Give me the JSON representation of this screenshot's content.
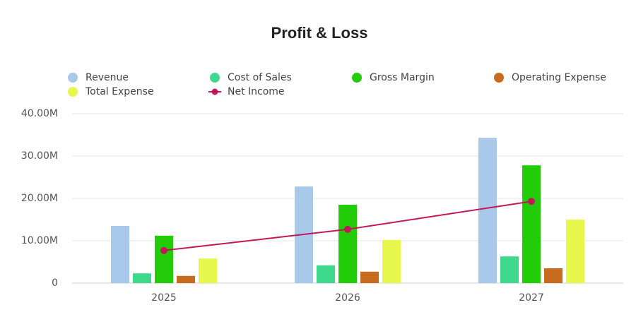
{
  "chart_data": {
    "type": "bar",
    "title": "Profit & Loss",
    "categories": [
      "2025",
      "2026",
      "2027"
    ],
    "series": [
      {
        "name": "Revenue",
        "color": "#a9c9ea",
        "values": [
          13500000,
          22800000,
          34300000
        ]
      },
      {
        "name": "Cost of Sales",
        "color": "#3ed98c",
        "values": [
          2300000,
          4200000,
          6300000
        ]
      },
      {
        "name": "Gross Margin",
        "color": "#22cc08",
        "values": [
          11200000,
          18500000,
          27800000
        ]
      },
      {
        "name": "Operating Expense",
        "color": "#c96b1e",
        "values": [
          1700000,
          2700000,
          3500000
        ]
      },
      {
        "name": "Total Expense",
        "color": "#e8f74c",
        "values": [
          5800000,
          10200000,
          15000000
        ]
      },
      {
        "name": "Net Income",
        "color": "#c2185b",
        "type": "line",
        "values": [
          7700000,
          12700000,
          19300000
        ]
      }
    ],
    "ylim": [
      0,
      40000000
    ],
    "yticks": [
      0,
      {
        "value": 10000000,
        "label": "10.00M"
      },
      {
        "value": 20000000,
        "label": "20.00M"
      },
      {
        "value": 30000000,
        "label": "30.00M"
      },
      {
        "value": 40000000,
        "label": "40.00M"
      }
    ],
    "grid": true
  }
}
